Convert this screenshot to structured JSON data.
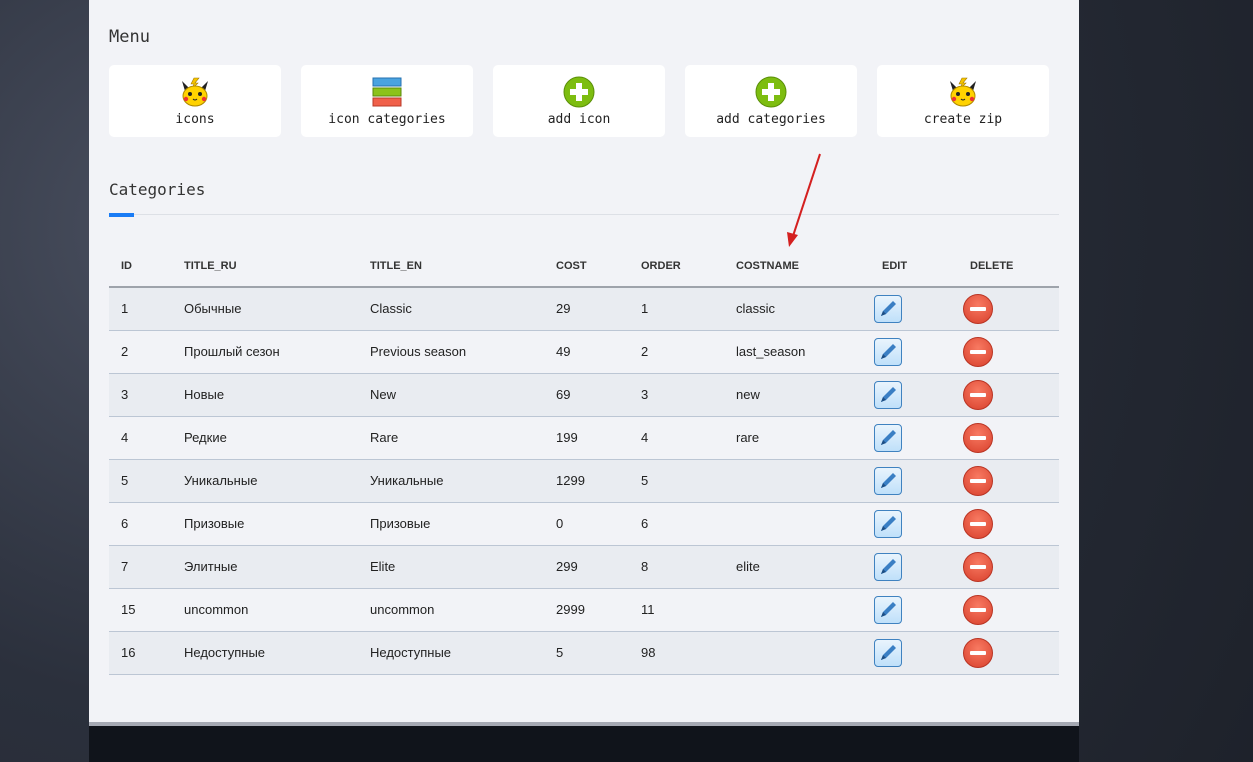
{
  "menu": {
    "title": "Menu",
    "items": [
      {
        "label": "icons",
        "icon": "pikachu-icon"
      },
      {
        "label": "icon categories",
        "icon": "stacked-bars-icon"
      },
      {
        "label": "add icon",
        "icon": "green-plus-icon"
      },
      {
        "label": "add categories",
        "icon": "green-plus-icon"
      },
      {
        "label": "create zip",
        "icon": "pikachu-icon"
      }
    ]
  },
  "categories": {
    "title": "Categories",
    "columns": [
      "ID",
      "TITLE_RU",
      "TITLE_EN",
      "COST",
      "ORDER",
      "COSTNAME",
      "EDIT",
      "DELETE"
    ],
    "rows": [
      [
        "1",
        "Обычные",
        "Classic",
        "29",
        "1",
        "classic"
      ],
      [
        "2",
        "Прошлый сезон",
        "Previous season",
        "49",
        "2",
        "last_season"
      ],
      [
        "3",
        "Новые",
        "New",
        "69",
        "3",
        "new"
      ],
      [
        "4",
        "Редкие",
        "Rare",
        "199",
        "4",
        "rare"
      ],
      [
        "5",
        "Уникальные",
        "Уникальные",
        "1299",
        "5",
        ""
      ],
      [
        "6",
        "Призовые",
        "Призовые",
        "0",
        "6",
        ""
      ],
      [
        "7",
        "Элитные",
        "Elite",
        "299",
        "8",
        "elite"
      ],
      [
        "15",
        "uncommon",
        "uncommon",
        "2999",
        "11",
        ""
      ],
      [
        "16",
        "Недоступные",
        "Недоступные",
        "5",
        "98",
        ""
      ]
    ]
  },
  "colors": {
    "accent": "#1a7cf5",
    "arrow": "#d42020",
    "edit": "#3f82c0",
    "delete": "#e04b35"
  }
}
